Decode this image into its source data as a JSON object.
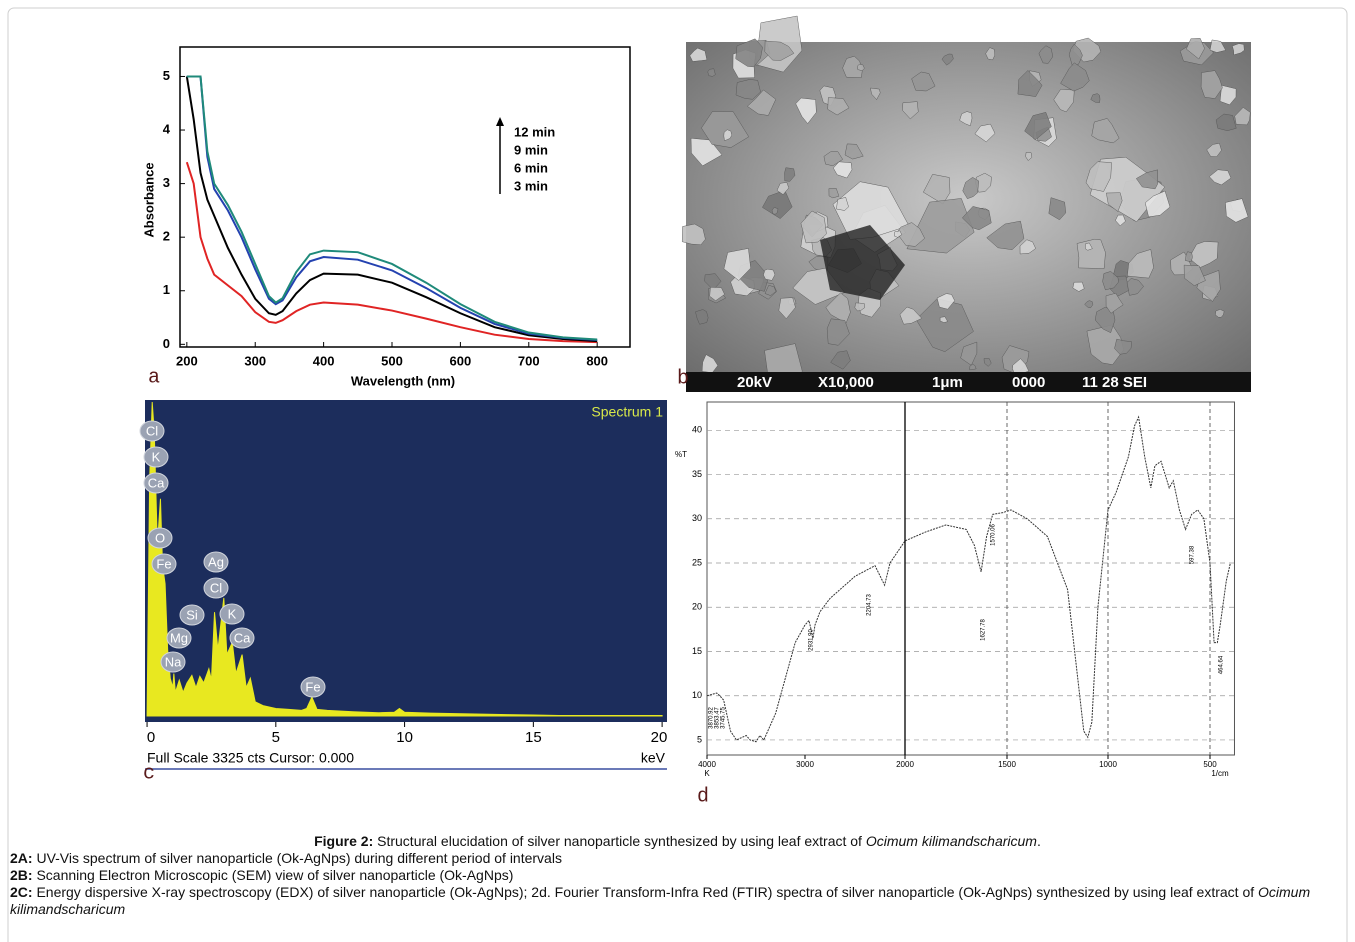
{
  "figure": {
    "panel_labels": [
      "a",
      "b",
      "c",
      "d"
    ],
    "sem": {
      "texts": [
        "20kV",
        "X10,000",
        "1μm",
        "0000",
        "11 28 SEI"
      ]
    },
    "caption": {
      "title": [
        "Figure 2:",
        "Structural elucidation of silver nanoparticle synthesized by using leaf extract of",
        "Ocimum kilimandscharicum",
        "."
      ],
      "lines": [
        [
          "2A:",
          "UV-Vis spectrum of silver nanoparticle (Ok-AgNps) during different period of intervals"
        ],
        [
          "2B:",
          "Scanning Electron Microscopic (SEM) view of silver nanoparticle (Ok-AgNps)"
        ],
        [
          "2C:",
          "Energy dispersive X-ray spectroscopy (EDX) of silver nanoparticle (Ok-AgNps); 2d. Fourier Transform-Infra Red (FTIR) spectra of silver nanoparticle (Ok-AgNps) synthesized by using leaf extract of",
          "Ocimum kilimandscharicum"
        ]
      ]
    }
  },
  "chart_data": [
    {
      "type": "line",
      "xlabel": "Wavelength (nm)",
      "ylabel": "Absorbance",
      "x": [
        200,
        210,
        220,
        230,
        240,
        260,
        280,
        300,
        320,
        330,
        340,
        360,
        380,
        400,
        450,
        500,
        550,
        600,
        650,
        700,
        750,
        800
      ],
      "series": [
        {
          "name": "3 min",
          "color": "#e02424",
          "values": [
            3.4,
            3.0,
            2.0,
            1.6,
            1.3,
            1.1,
            0.9,
            0.6,
            0.42,
            0.4,
            0.45,
            0.62,
            0.74,
            0.78,
            0.74,
            0.63,
            0.48,
            0.32,
            0.18,
            0.1,
            0.06,
            0.04
          ]
        },
        {
          "name": "6 min",
          "color": "#000000",
          "values": [
            5,
            4.2,
            3.2,
            2.7,
            2.4,
            1.8,
            1.3,
            0.85,
            0.58,
            0.55,
            0.62,
            0.95,
            1.2,
            1.32,
            1.3,
            1.15,
            0.88,
            0.58,
            0.32,
            0.17,
            0.1,
            0.06
          ]
        },
        {
          "name": "9 min",
          "color": "#2442b0",
          "values": [
            5,
            5,
            5,
            3.5,
            2.9,
            2.5,
            2.0,
            1.4,
            0.85,
            0.75,
            0.82,
            1.25,
            1.55,
            1.63,
            1.58,
            1.38,
            1.05,
            0.68,
            0.38,
            0.2,
            0.12,
            0.08
          ]
        },
        {
          "name": "12 min",
          "color": "#1f8a7a",
          "values": [
            5,
            5,
            5,
            3.6,
            3.0,
            2.6,
            2.1,
            1.5,
            0.9,
            0.78,
            0.86,
            1.35,
            1.68,
            1.75,
            1.72,
            1.5,
            1.15,
            0.75,
            0.42,
            0.22,
            0.13,
            0.09
          ]
        }
      ],
      "xlim": [
        190,
        848
      ],
      "ylim": [
        -0.05,
        5.55
      ],
      "xticks": [
        200,
        300,
        400,
        500,
        600,
        700,
        800
      ],
      "yticks": [
        0,
        1,
        2,
        3,
        4,
        5
      ],
      "grid": false
    },
    {
      "type": "area",
      "title": "Spectrum 1",
      "footer": "Full Scale 3325 cts Cursor: 0.000",
      "xlabel": "keV",
      "color": "#e8e820",
      "x": [
        0,
        0.1,
        0.2,
        0.28,
        0.4,
        0.52,
        0.6,
        0.7,
        0.8,
        0.9,
        1.0,
        1.04,
        1.1,
        1.25,
        1.4,
        1.55,
        1.74,
        1.9,
        2.05,
        2.2,
        2.4,
        2.5,
        2.62,
        2.75,
        2.98,
        3.1,
        3.31,
        3.45,
        3.69,
        3.85,
        4.01,
        4.2,
        4.5,
        5.0,
        5.5,
        6.0,
        6.2,
        6.4,
        6.6,
        7.0,
        8.0,
        9.0,
        9.6,
        9.8,
        10.0,
        11,
        12,
        13,
        14,
        15,
        16,
        20
      ],
      "values": [
        0,
        2500,
        3325,
        3000,
        1800,
        2300,
        1600,
        1400,
        700,
        400,
        300,
        450,
        250,
        380,
        250,
        350,
        430,
        300,
        420,
        350,
        500,
        380,
        1100,
        700,
        1250,
        650,
        780,
        450,
        650,
        300,
        400,
        150,
        110,
        80,
        70,
        60,
        80,
        200,
        70,
        60,
        45,
        35,
        40,
        80,
        40,
        30,
        25,
        20,
        15,
        10,
        5,
        5
      ],
      "elements": [
        "Cl",
        "K",
        "Ca",
        "O",
        "Fe",
        "Ag",
        "Cl",
        "Si",
        "K",
        "Mg",
        "Ca",
        "Na",
        "Fe"
      ],
      "xlim": [
        -0.08,
        20.19
      ],
      "ylim": [
        0,
        3325
      ],
      "xticks": [
        0,
        5,
        10,
        15,
        20
      ]
    },
    {
      "type": "line",
      "ylabel": "%T",
      "xlabel": "1/cm",
      "xunit_left": "K",
      "series": [
        {
          "color": "#333333",
          "x": [
            4000,
            3900,
            3870,
            3830,
            3800,
            3760,
            3700,
            3600,
            3560,
            3500,
            3460,
            3420,
            3300,
            3200,
            3100,
            3000,
            2960,
            2920,
            2900,
            2850,
            2750,
            2500,
            2300,
            2204,
            2150,
            2000,
            1900,
            1800,
            1700,
            1660,
            1627,
            1600,
            1570,
            1520,
            1480,
            1400,
            1300,
            1200,
            1150,
            1120,
            1100,
            1080,
            1050,
            1000,
            960,
            900,
            870,
            850,
            820,
            790,
            770,
            740,
            720,
            700,
            680,
            650,
            620,
            590,
            560,
            530,
            500,
            480,
            464,
            450,
            420,
            400
          ],
          "values": [
            10,
            10.3,
            10,
            9.5,
            8,
            6,
            5,
            5.5,
            5,
            4.8,
            5.5,
            5,
            8,
            12,
            16,
            18,
            18.5,
            16.5,
            18,
            19.5,
            21,
            23.5,
            24.7,
            22.5,
            25,
            27.5,
            28.5,
            29.3,
            28.8,
            27,
            24,
            28,
            30.5,
            30.7,
            31,
            30,
            28,
            22,
            12,
            6,
            5.3,
            7,
            20,
            31,
            33,
            37,
            40.5,
            41.5,
            37,
            33.5,
            36,
            36.5,
            35,
            33.5,
            34.3,
            31,
            28.8,
            30.5,
            31,
            30,
            25,
            16,
            16,
            18,
            23,
            25
          ]
        }
      ],
      "peak_labels": [
        "3870.92",
        "3853.47",
        "3745.75",
        "2931.90",
        "2204.73",
        "1627.78",
        "1570.06",
        "597.38",
        "464.64"
      ],
      "xlim": [
        4000,
        380
      ],
      "ylim": [
        3.3,
        43.2
      ],
      "xticks": [
        4000,
        3000,
        2000,
        1500,
        1000,
        500
      ],
      "yticks": [
        5,
        10,
        15,
        20,
        25,
        30,
        35,
        40
      ],
      "grid": true
    }
  ]
}
